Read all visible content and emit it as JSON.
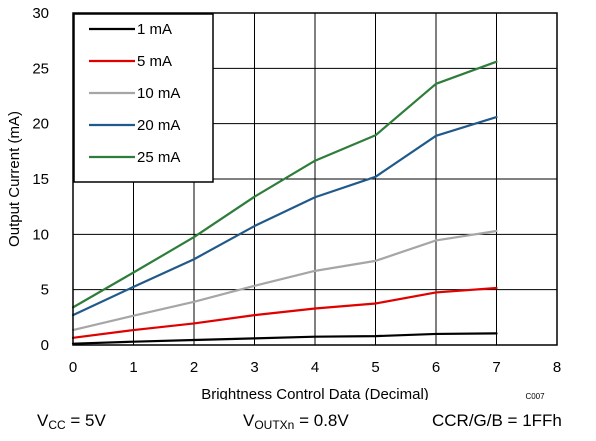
{
  "chart_data": {
    "type": "line",
    "xlabel": "Brightness Control Data (Decimal)",
    "ylabel": "Output Current (mA)",
    "xlim": [
      0,
      8
    ],
    "ylim": [
      0,
      30
    ],
    "xticks": [
      "0",
      "1",
      "2",
      "3",
      "4",
      "5",
      "6",
      "7",
      "8"
    ],
    "yticks": [
      "0",
      "5",
      "10",
      "15",
      "20",
      "25",
      "30"
    ],
    "grid": true,
    "legend_position": "top-left",
    "figure_id": "C007",
    "x": [
      0,
      1,
      2,
      3,
      4,
      5,
      6,
      7
    ],
    "series": [
      {
        "name": "1 mA",
        "color": "#000000",
        "values": [
          0.12,
          0.3,
          0.45,
          0.6,
          0.75,
          0.8,
          1.0,
          1.05
        ]
      },
      {
        "name": "5 mA",
        "color": "#e00000",
        "values": [
          0.65,
          1.35,
          1.95,
          2.7,
          3.3,
          3.75,
          4.75,
          5.15
        ]
      },
      {
        "name": "10 mA",
        "color": "#a6a6a6",
        "values": [
          1.35,
          2.65,
          3.9,
          5.35,
          6.7,
          7.6,
          9.45,
          10.3
        ]
      },
      {
        "name": "20 mA",
        "color": "#215a8a",
        "values": [
          2.7,
          5.25,
          7.75,
          10.75,
          13.35,
          15.2,
          18.9,
          20.6
        ]
      },
      {
        "name": "25 mA",
        "color": "#2e7d3a",
        "values": [
          3.4,
          6.55,
          9.75,
          13.4,
          16.65,
          18.95,
          23.6,
          25.6
        ]
      }
    ]
  },
  "conditions": {
    "vcc": {
      "symbol": "V",
      "subscript": "CC",
      "value": " = 5V"
    },
    "vout": {
      "symbol": "V",
      "subscript": "OUTXn",
      "value": " = 0.8V"
    },
    "ccr": {
      "text": "CCR/G/B = 1FFh"
    }
  }
}
